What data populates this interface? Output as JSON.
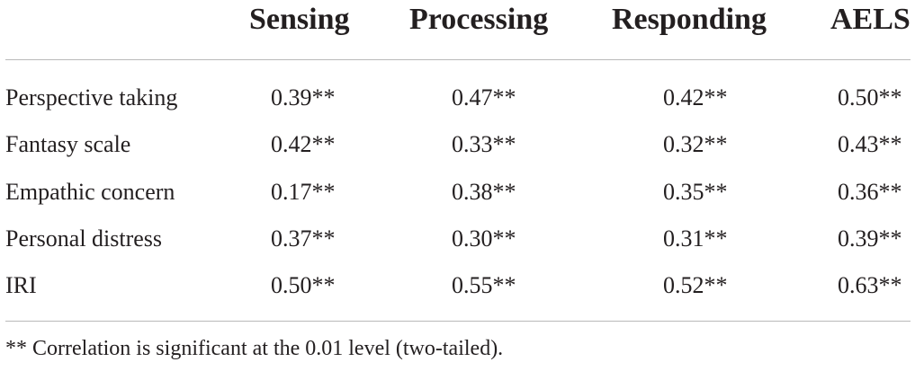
{
  "table": {
    "headers": [
      "",
      "Sensing",
      "Processing",
      "Responding",
      "AELS"
    ],
    "rows": [
      {
        "label": "Perspective taking",
        "values": [
          "0.39**",
          "0.47**",
          "0.42**",
          "0.50**"
        ]
      },
      {
        "label": "Fantasy scale",
        "values": [
          "0.42**",
          "0.33**",
          "0.32**",
          "0.43**"
        ]
      },
      {
        "label": "Empathic concern",
        "values": [
          "0.17**",
          "0.38**",
          "0.35**",
          "0.36**"
        ]
      },
      {
        "label": "Personal distress",
        "values": [
          "0.37**",
          "0.30**",
          "0.31**",
          "0.39**"
        ]
      },
      {
        "label": "IRI",
        "values": [
          "0.50**",
          "0.55**",
          "0.52**",
          "0.63**"
        ]
      }
    ],
    "footnote": "** Correlation is significant at the 0.01 level (two-tailed)."
  }
}
